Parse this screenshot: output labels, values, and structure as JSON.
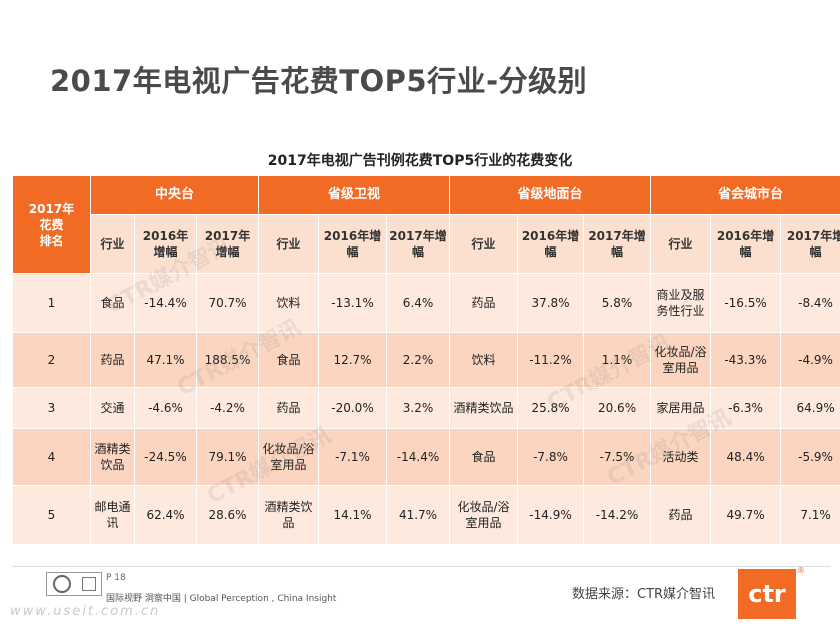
{
  "title": "2017年电视广告花费TOP5行业-分级别",
  "table": {
    "caption": "2017年电视广告刊例花费TOP5行业的花费变化",
    "rank_header": [
      "2017年",
      "花费",
      "排名"
    ],
    "groups": [
      "中央台",
      "省级卫视",
      "省级地面台",
      "省会城市台"
    ],
    "subheaders": [
      "行业",
      "2016年增幅",
      "2017年增幅"
    ],
    "rows": [
      {
        "rank": "1",
        "cells": [
          "食品",
          "-14.4%",
          "70.7%",
          "饮料",
          "-13.1%",
          "6.4%",
          "药品",
          "37.8%",
          "5.8%",
          "商业及服务性行业",
          "-16.5%",
          "-8.4%"
        ]
      },
      {
        "rank": "2",
        "cells": [
          "药品",
          "47.1%",
          "188.5%",
          "食品",
          "12.7%",
          "2.2%",
          "饮料",
          "-11.2%",
          "1.1%",
          "化妆品/浴室用品",
          "-43.3%",
          "-4.9%"
        ]
      },
      {
        "rank": "3",
        "cells": [
          "交通",
          "-4.6%",
          "-4.2%",
          "药品",
          "-20.0%",
          "3.2%",
          "酒精类饮品",
          "25.8%",
          "20.6%",
          "家居用品",
          "-6.3%",
          "64.9%"
        ]
      },
      {
        "rank": "4",
        "cells": [
          "酒精类饮品",
          "-24.5%",
          "79.1%",
          "化妆品/浴室用品",
          "-7.1%",
          "-14.4%",
          "食品",
          "-7.8%",
          "-7.5%",
          "活动类",
          "48.4%",
          "-5.9%"
        ]
      },
      {
        "rank": "5",
        "cells": [
          "邮电通讯",
          "62.4%",
          "28.6%",
          "酒精类饮品",
          "14.1%",
          "41.7%",
          "化妆品/浴室用品",
          "-14.9%",
          "-14.2%",
          "药品",
          "49.7%",
          "7.1%"
        ]
      }
    ]
  },
  "watermark_text": "CTR媒介智讯",
  "footer": {
    "page": "P 18",
    "slogan": "国际视野  洞察中国 | Global Perception , China Insight",
    "site": "www.useit.com.cn",
    "source": "数据来源：CTR媒介智讯",
    "brand": "ctr",
    "brand_mark": "®"
  }
}
